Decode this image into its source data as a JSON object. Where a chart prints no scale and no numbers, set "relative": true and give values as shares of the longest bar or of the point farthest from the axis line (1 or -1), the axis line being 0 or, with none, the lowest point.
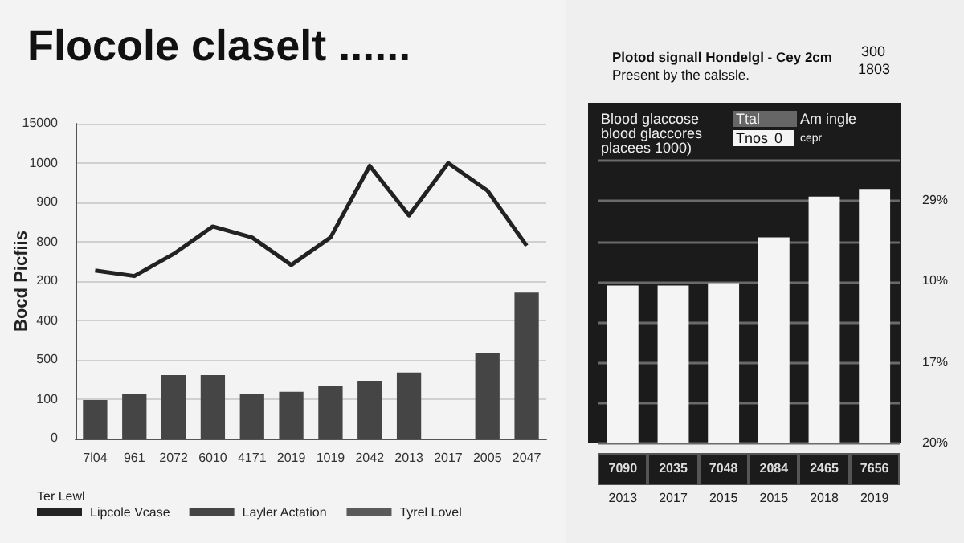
{
  "chart_data": [
    {
      "type": "bar",
      "title": "Flocole claselt ......",
      "ylabel": "Bocd Picfiis",
      "legend_title": "Ter Lewl",
      "relative": true,
      "annotations": [
        "0",
        "100",
        "500",
        "400",
        "200",
        "800",
        "900",
        "1000",
        "15000"
      ],
      "categories": [
        "7l04",
        "961",
        "2072",
        "6010",
        "4171",
        "2019",
        "1019",
        "2042",
        "2013",
        "2017",
        "2005",
        "2047"
      ],
      "series": [
        {
          "name": "Lipcole Vcase",
          "type": "line",
          "color": "#222222",
          "values": [
            0.61,
            0.59,
            0.67,
            0.77,
            0.73,
            0.63,
            0.73,
            0.99,
            0.81,
            1,
            0.9,
            0.7
          ]
        },
        {
          "name": "Layler Actation",
          "color": "#454545",
          "values": [
            0.14,
            0.16,
            0.23,
            0.23,
            0.16,
            0.17,
            0.19,
            0.21,
            0.24,
            null,
            0.31,
            0.53
          ]
        },
        {
          "name": "Tyrel Lovel",
          "color": "#5a5a5a",
          "values": [
            null,
            null,
            null,
            null,
            null,
            null,
            null,
            null,
            null,
            null,
            null,
            null
          ]
        }
      ],
      "grid": "y",
      "legend": "bottom left",
      "marker": "none"
    },
    {
      "type": "bar",
      "title": "Plotod signall Hondelgl - Cey 2cm",
      "subtitle": "Present by the calssle.",
      "relative": true,
      "annotations": [
        "300",
        "1803",
        "Blood glaccose",
        "blood glaccores",
        "placees 1000)",
        "Ttal",
        "Am ingle",
        "Tnos",
        "0",
        "cepr",
        "20%",
        "17%",
        "10%",
        "29%",
        "7090",
        "2035",
        "7048",
        "2084",
        "2465",
        "7656"
      ],
      "categories": [
        "2013",
        "2017",
        "2015",
        "2015",
        "2018",
        "2019"
      ],
      "values": [
        0.62,
        0.62,
        0.63,
        0.81,
        0.97,
        1
      ],
      "color": "#f4f4f4",
      "grid": "y",
      "legend": false
    }
  ]
}
